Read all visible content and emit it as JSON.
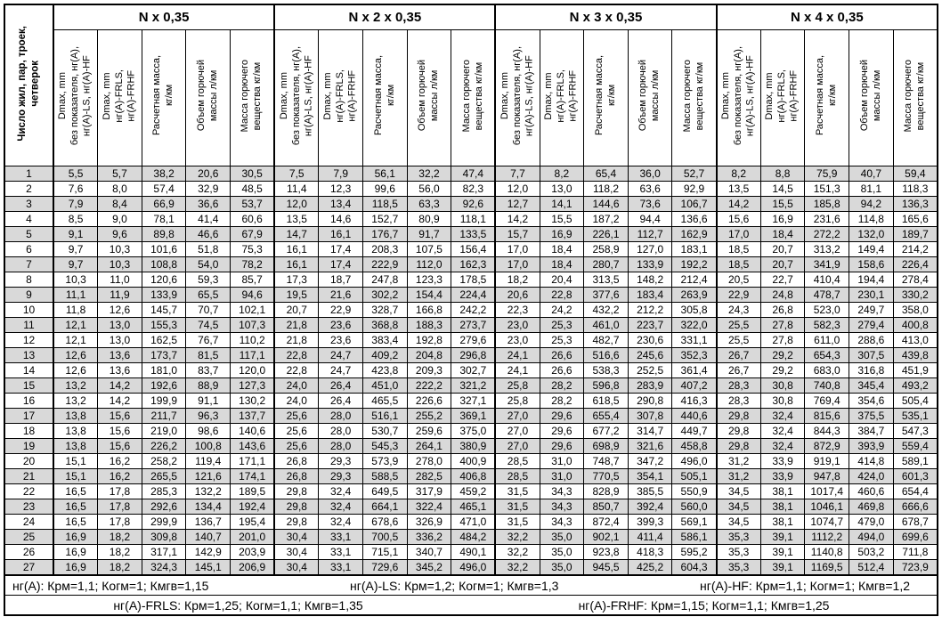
{
  "table": {
    "corner_header": "Число жил, пар, троек,\nчетверок",
    "groups": [
      {
        "title": "N x 0,35"
      },
      {
        "title": "N x 2 x 0,35"
      },
      {
        "title": "N x 3 x 0,35"
      },
      {
        "title": "N x 4 x 0,35"
      }
    ],
    "sub_headers": [
      "Dmax, mm\nбез показателя, нг(А),\nнг(А)-LS, нг(А)-HF",
      "Dmax, mm\nнг(А)-FRLS,\nнг(А)-FRHF",
      "Расчетная масса,\nкг/км",
      "Объем горючей\nмассы л/км",
      "Масса горючего\nвещества кг/км"
    ],
    "rows": [
      [
        "1",
        "5,5",
        "5,7",
        "38,2",
        "20,6",
        "30,5",
        "7,5",
        "7,9",
        "56,1",
        "32,2",
        "47,4",
        "7,7",
        "8,2",
        "65,4",
        "36,0",
        "52,7",
        "8,2",
        "8,8",
        "75,9",
        "40,7",
        "59,4"
      ],
      [
        "2",
        "7,6",
        "8,0",
        "57,4",
        "32,9",
        "48,5",
        "11,4",
        "12,3",
        "99,6",
        "56,0",
        "82,3",
        "12,0",
        "13,0",
        "118,2",
        "63,6",
        "92,9",
        "13,5",
        "14,5",
        "151,3",
        "81,1",
        "118,3"
      ],
      [
        "3",
        "7,9",
        "8,4",
        "66,9",
        "36,6",
        "53,7",
        "12,0",
        "13,4",
        "118,5",
        "63,3",
        "92,6",
        "12,7",
        "14,1",
        "144,6",
        "73,6",
        "106,7",
        "14,2",
        "15,5",
        "185,8",
        "94,2",
        "136,3"
      ],
      [
        "4",
        "8,5",
        "9,0",
        "78,1",
        "41,4",
        "60,6",
        "13,5",
        "14,6",
        "152,7",
        "80,9",
        "118,1",
        "14,2",
        "15,5",
        "187,2",
        "94,4",
        "136,6",
        "15,6",
        "16,9",
        "231,6",
        "114,8",
        "165,6"
      ],
      [
        "5",
        "9,1",
        "9,6",
        "89,8",
        "46,6",
        "67,9",
        "14,7",
        "16,1",
        "176,7",
        "91,7",
        "133,5",
        "15,7",
        "16,9",
        "226,1",
        "112,7",
        "162,9",
        "17,0",
        "18,4",
        "272,2",
        "132,0",
        "189,7"
      ],
      [
        "6",
        "9,7",
        "10,3",
        "101,6",
        "51,8",
        "75,3",
        "16,1",
        "17,4",
        "208,3",
        "107,5",
        "156,4",
        "17,0",
        "18,4",
        "258,9",
        "127,0",
        "183,1",
        "18,5",
        "20,7",
        "313,2",
        "149,4",
        "214,2"
      ],
      [
        "7",
        "9,7",
        "10,3",
        "108,8",
        "54,0",
        "78,2",
        "16,1",
        "17,4",
        "222,9",
        "112,0",
        "162,3",
        "17,0",
        "18,4",
        "280,7",
        "133,9",
        "192,2",
        "18,5",
        "20,7",
        "341,9",
        "158,6",
        "226,4"
      ],
      [
        "8",
        "10,3",
        "11,0",
        "120,6",
        "59,3",
        "85,7",
        "17,3",
        "18,7",
        "247,8",
        "123,3",
        "178,5",
        "18,2",
        "20,4",
        "313,5",
        "148,2",
        "212,4",
        "20,5",
        "22,7",
        "410,4",
        "194,4",
        "278,4"
      ],
      [
        "9",
        "11,1",
        "11,9",
        "133,9",
        "65,5",
        "94,6",
        "19,5",
        "21,6",
        "302,2",
        "154,4",
        "224,4",
        "20,6",
        "22,8",
        "377,6",
        "183,4",
        "263,9",
        "22,9",
        "24,8",
        "478,7",
        "230,1",
        "330,2"
      ],
      [
        "10",
        "11,8",
        "12,6",
        "145,7",
        "70,7",
        "102,1",
        "20,7",
        "22,9",
        "328,7",
        "166,8",
        "242,2",
        "22,3",
        "24,2",
        "432,2",
        "212,2",
        "305,8",
        "24,3",
        "26,8",
        "523,0",
        "249,7",
        "358,0"
      ],
      [
        "11",
        "12,1",
        "13,0",
        "155,3",
        "74,5",
        "107,3",
        "21,8",
        "23,6",
        "368,8",
        "188,3",
        "273,7",
        "23,0",
        "25,3",
        "461,0",
        "223,7",
        "322,0",
        "25,5",
        "27,8",
        "582,3",
        "279,4",
        "400,8"
      ],
      [
        "12",
        "12,1",
        "13,0",
        "162,5",
        "76,7",
        "110,2",
        "21,8",
        "23,6",
        "383,4",
        "192,8",
        "279,6",
        "23,0",
        "25,3",
        "482,7",
        "230,6",
        "331,1",
        "25,5",
        "27,8",
        "611,0",
        "288,6",
        "413,0"
      ],
      [
        "13",
        "12,6",
        "13,6",
        "173,7",
        "81,5",
        "117,1",
        "22,8",
        "24,7",
        "409,2",
        "204,8",
        "296,8",
        "24,1",
        "26,6",
        "516,6",
        "245,6",
        "352,3",
        "26,7",
        "29,2",
        "654,3",
        "307,5",
        "439,8"
      ],
      [
        "14",
        "12,6",
        "13,6",
        "181,0",
        "83,7",
        "120,0",
        "22,8",
        "24,7",
        "423,8",
        "209,3",
        "302,7",
        "24,1",
        "26,6",
        "538,3",
        "252,5",
        "361,4",
        "26,7",
        "29,2",
        "683,0",
        "316,8",
        "451,9"
      ],
      [
        "15",
        "13,2",
        "14,2",
        "192,6",
        "88,9",
        "127,3",
        "24,0",
        "26,4",
        "451,0",
        "222,2",
        "321,2",
        "25,8",
        "28,2",
        "596,8",
        "283,9",
        "407,2",
        "28,3",
        "30,8",
        "740,8",
        "345,4",
        "493,2"
      ],
      [
        "16",
        "13,2",
        "14,2",
        "199,9",
        "91,1",
        "130,2",
        "24,0",
        "26,4",
        "465,5",
        "226,6",
        "327,1",
        "25,8",
        "28,2",
        "618,5",
        "290,8",
        "416,3",
        "28,3",
        "30,8",
        "769,4",
        "354,6",
        "505,4"
      ],
      [
        "17",
        "13,8",
        "15,6",
        "211,7",
        "96,3",
        "137,7",
        "25,6",
        "28,0",
        "516,1",
        "255,2",
        "369,1",
        "27,0",
        "29,6",
        "655,4",
        "307,8",
        "440,6",
        "29,8",
        "32,4",
        "815,6",
        "375,5",
        "535,1"
      ],
      [
        "18",
        "13,8",
        "15,6",
        "219,0",
        "98,6",
        "140,6",
        "25,6",
        "28,0",
        "530,7",
        "259,6",
        "375,0",
        "27,0",
        "29,6",
        "677,2",
        "314,7",
        "449,7",
        "29,8",
        "32,4",
        "844,3",
        "384,7",
        "547,3"
      ],
      [
        "19",
        "13,8",
        "15,6",
        "226,2",
        "100,8",
        "143,6",
        "25,6",
        "28,0",
        "545,3",
        "264,1",
        "380,9",
        "27,0",
        "29,6",
        "698,9",
        "321,6",
        "458,8",
        "29,8",
        "32,4",
        "872,9",
        "393,9",
        "559,4"
      ],
      [
        "20",
        "15,1",
        "16,2",
        "258,2",
        "119,4",
        "171,1",
        "26,8",
        "29,3",
        "573,9",
        "278,0",
        "400,9",
        "28,5",
        "31,0",
        "748,7",
        "347,2",
        "496,0",
        "31,2",
        "33,9",
        "919,1",
        "414,8",
        "589,1"
      ],
      [
        "21",
        "15,1",
        "16,2",
        "265,5",
        "121,6",
        "174,1",
        "26,8",
        "29,3",
        "588,5",
        "282,5",
        "406,8",
        "28,5",
        "31,0",
        "770,5",
        "354,1",
        "505,1",
        "31,2",
        "33,9",
        "947,8",
        "424,0",
        "601,3"
      ],
      [
        "22",
        "16,5",
        "17,8",
        "285,3",
        "132,2",
        "189,5",
        "29,8",
        "32,4",
        "649,5",
        "317,9",
        "459,2",
        "31,5",
        "34,3",
        "828,9",
        "385,5",
        "550,9",
        "34,5",
        "38,1",
        "1017,4",
        "460,6",
        "654,4"
      ],
      [
        "23",
        "16,5",
        "17,8",
        "292,6",
        "134,4",
        "192,4",
        "29,8",
        "32,4",
        "664,1",
        "322,4",
        "465,1",
        "31,5",
        "34,3",
        "850,7",
        "392,4",
        "560,0",
        "34,5",
        "38,1",
        "1046,1",
        "469,8",
        "666,6"
      ],
      [
        "24",
        "16,5",
        "17,8",
        "299,9",
        "136,7",
        "195,4",
        "29,8",
        "32,4",
        "678,6",
        "326,9",
        "471,0",
        "31,5",
        "34,3",
        "872,4",
        "399,3",
        "569,1",
        "34,5",
        "38,1",
        "1074,7",
        "479,0",
        "678,7"
      ],
      [
        "25",
        "16,9",
        "18,2",
        "309,8",
        "140,7",
        "201,0",
        "30,4",
        "33,1",
        "700,5",
        "336,2",
        "484,2",
        "32,2",
        "35,0",
        "902,1",
        "411,4",
        "586,1",
        "35,3",
        "39,1",
        "1112,2",
        "494,0",
        "699,6"
      ],
      [
        "26",
        "16,9",
        "18,2",
        "317,1",
        "142,9",
        "203,9",
        "30,4",
        "33,1",
        "715,1",
        "340,7",
        "490,1",
        "32,2",
        "35,0",
        "923,8",
        "418,3",
        "595,2",
        "35,3",
        "39,1",
        "1140,8",
        "503,2",
        "711,8"
      ],
      [
        "27",
        "16,9",
        "18,2",
        "324,3",
        "145,1",
        "206,9",
        "30,4",
        "33,1",
        "729,6",
        "345,2",
        "496,0",
        "32,2",
        "35,0",
        "945,5",
        "425,2",
        "604,3",
        "35,3",
        "39,1",
        "1169,5",
        "512,4",
        "723,9"
      ]
    ],
    "footnotes": {
      "line1": [
        "нг(А): Крм=1,1;  Когм=1;  Кмгв=1,15",
        "нг(А)-LS: Крм=1,2;  Когм=1;  Кмгв=1,3",
        "нг(А)-HF: Крм=1,1;  Когм=1;  Кмгв=1,2"
      ],
      "line2": [
        "нг(А)-FRLS: Крм=1,25;  Когм=1,1;  Кмгв=1,35",
        "нг(А)-FRHF: Крм=1,15;  Когм=1,1;  Кмгв=1,25"
      ]
    },
    "colors": {
      "stripe": "#d9d9d9",
      "border": "#000000",
      "background": "#ffffff"
    }
  }
}
